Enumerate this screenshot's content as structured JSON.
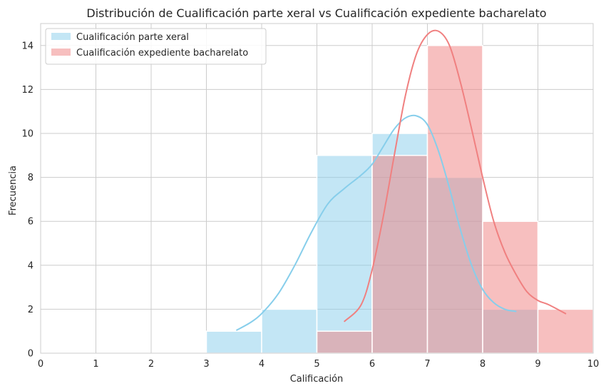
{
  "chart_data": {
    "type": "histogram",
    "title": "Distribución de Cualificación parte xeral vs Cualificación expediente bacharelato",
    "xlabel": "Calificación",
    "ylabel": "Frecuencia",
    "xlim": [
      0,
      10
    ],
    "ylim": [
      0,
      15
    ],
    "xticks": [
      "0",
      "1",
      "2",
      "3",
      "4",
      "5",
      "6",
      "7",
      "8",
      "9",
      "10"
    ],
    "yticks": [
      "0",
      "2",
      "4",
      "6",
      "8",
      "10",
      "12",
      "14"
    ],
    "grid": true,
    "legend_position": "top-left",
    "series": [
      {
        "name": "Cualificación parte xeral",
        "color": "#87CEEB",
        "bins": [
          [
            3,
            4
          ],
          [
            4,
            5
          ],
          [
            5,
            6
          ],
          [
            6,
            7
          ],
          [
            7,
            8
          ],
          [
            8,
            9
          ]
        ],
        "values": [
          1,
          2,
          9,
          10,
          8,
          2
        ],
        "kde": {
          "x": [
            3.55,
            3.8,
            4.0,
            4.3,
            4.6,
            4.9,
            5.2,
            5.5,
            5.8,
            6.0,
            6.2,
            6.4,
            6.6,
            6.8,
            7.0,
            7.2,
            7.4,
            7.6,
            7.8,
            8.0,
            8.2,
            8.4,
            8.6
          ],
          "y": [
            1.05,
            1.4,
            1.8,
            2.7,
            4.0,
            5.5,
            6.8,
            7.5,
            8.1,
            8.6,
            9.4,
            10.2,
            10.7,
            10.8,
            10.4,
            9.2,
            7.5,
            5.6,
            4.0,
            2.9,
            2.3,
            2.0,
            1.9
          ]
        }
      },
      {
        "name": "Cualificación expediente bacharelato",
        "color": "#F08080",
        "bins": [
          [
            5,
            6
          ],
          [
            6,
            7
          ],
          [
            7,
            8
          ],
          [
            8,
            9
          ],
          [
            9,
            10
          ]
        ],
        "values": [
          1,
          9,
          14,
          6,
          2
        ],
        "kde": {
          "x": [
            5.5,
            5.8,
            6.0,
            6.2,
            6.4,
            6.6,
            6.8,
            7.0,
            7.2,
            7.4,
            7.6,
            7.8,
            8.0,
            8.2,
            8.4,
            8.6,
            8.8,
            9.0,
            9.2,
            9.5
          ],
          "y": [
            1.45,
            2.2,
            3.8,
            6.2,
            9.0,
            11.7,
            13.6,
            14.5,
            14.65,
            14.0,
            12.3,
            10.2,
            8.0,
            6.0,
            4.6,
            3.6,
            2.8,
            2.4,
            2.2,
            1.8
          ]
        }
      }
    ]
  }
}
